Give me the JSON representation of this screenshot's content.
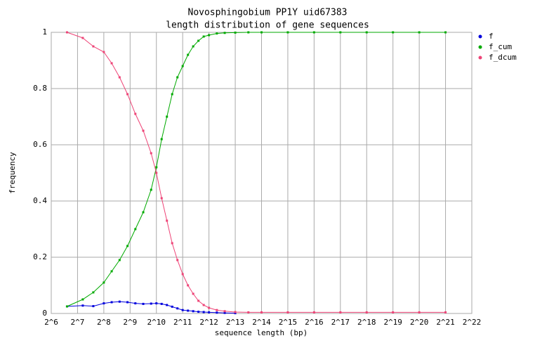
{
  "chart_data": {
    "type": "line",
    "title": "Novosphingobium PP1Y uid67383",
    "subtitle": "length distribution of gene sequences",
    "x_label": "sequence length (bp)",
    "y_label": "frequency",
    "x_scale": "log2",
    "grid": true,
    "legend": "top-right",
    "xlim": [
      64,
      4194304
    ],
    "xticks": [
      {
        "value": 64,
        "label": "2^6"
      },
      {
        "value": 128,
        "label": "2^7"
      },
      {
        "value": 256,
        "label": "2^8"
      },
      {
        "value": 512,
        "label": "2^9"
      },
      {
        "value": 1024,
        "label": "2^10"
      },
      {
        "value": 2048,
        "label": "2^11"
      },
      {
        "value": 4096,
        "label": "2^12"
      },
      {
        "value": 8192,
        "label": "2^13"
      },
      {
        "value": 16384,
        "label": "2^14"
      },
      {
        "value": 32768,
        "label": "2^15"
      },
      {
        "value": 65536,
        "label": "2^16"
      },
      {
        "value": 131072,
        "label": "2^17"
      },
      {
        "value": 262144,
        "label": "2^18"
      },
      {
        "value": 524288,
        "label": "2^19"
      },
      {
        "value": 1048576,
        "label": "2^20"
      },
      {
        "value": 2097152,
        "label": "2^21"
      },
      {
        "value": 4194304,
        "label": "2^22"
      }
    ],
    "ylim": [
      0,
      1
    ],
    "yticks": [
      0,
      0.2,
      0.4,
      0.6,
      0.8,
      1
    ],
    "x": [
      97,
      147,
      194,
      256,
      315,
      388,
      478,
      588,
      724,
      891,
      1024,
      1176,
      1351,
      1552,
      1783,
      2048,
      2353,
      2702,
      3104,
      3566,
      4096,
      5043,
      6208,
      8192,
      11585,
      16384,
      32768,
      65536,
      131072,
      262144,
      524288,
      1048576,
      2097152
    ],
    "series": [
      {
        "name": "f",
        "color": "#0000dd",
        "values": [
          0.025,
          0.028,
          0.026,
          0.036,
          0.04,
          0.042,
          0.04,
          0.036,
          0.034,
          0.035,
          0.036,
          0.034,
          0.03,
          0.024,
          0.018,
          0.012,
          0.01,
          0.008,
          0.006,
          0.005,
          0.004,
          0.003,
          0.002,
          0.001,
          null,
          null,
          null,
          null,
          null,
          null,
          null,
          null,
          null
        ]
      },
      {
        "name": "f_cum",
        "color": "#00aa00",
        "values": [
          0.025,
          0.05,
          0.075,
          0.11,
          0.15,
          0.19,
          0.24,
          0.3,
          0.36,
          0.44,
          0.52,
          0.62,
          0.7,
          0.78,
          0.84,
          0.88,
          0.92,
          0.95,
          0.97,
          0.985,
          0.99,
          0.996,
          0.998,
          0.999,
          1,
          1,
          1,
          1,
          1,
          1,
          1,
          1,
          1
        ]
      },
      {
        "name": "f_dcum",
        "color": "#ee4477",
        "values": [
          1,
          0.98,
          0.95,
          0.93,
          0.89,
          0.84,
          0.78,
          0.71,
          0.65,
          0.57,
          0.5,
          0.41,
          0.33,
          0.25,
          0.19,
          0.14,
          0.1,
          0.07,
          0.045,
          0.03,
          0.02,
          0.012,
          0.008,
          0.005,
          0.004,
          0.004,
          0.004,
          0.004,
          0.004,
          0.004,
          0.004,
          0.004,
          0.004
        ]
      }
    ]
  }
}
